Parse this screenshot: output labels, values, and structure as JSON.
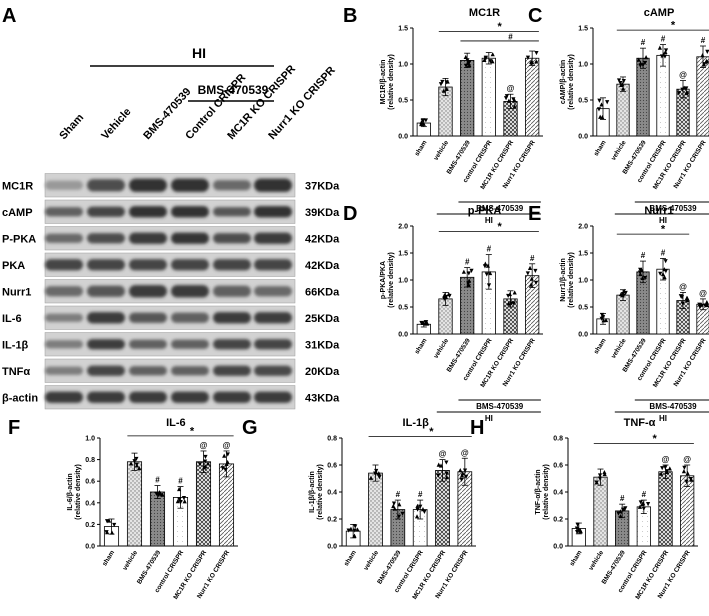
{
  "panel_a": {
    "letter": "A",
    "hi_label": "HI",
    "bms_label": "BMS-470539",
    "lanes": [
      "Sham",
      "Vehicle",
      "BMS-470539",
      "Control CRISPR",
      "MC1R KO CRISPR",
      "Nurr1 KO CRISPR"
    ],
    "bands": [
      {
        "name": "MC1R",
        "kda": "37KDa",
        "intensity": [
          0.3,
          0.7,
          0.85,
          0.85,
          0.55,
          0.85
        ],
        "thickness": [
          0.45,
          0.6,
          0.65,
          0.65,
          0.5,
          0.65
        ]
      },
      {
        "name": "cAMP",
        "kda": "39KDa",
        "intensity": [
          0.6,
          0.75,
          0.85,
          0.85,
          0.65,
          0.85
        ],
        "thickness": [
          0.45,
          0.5,
          0.55,
          0.55,
          0.45,
          0.55
        ]
      },
      {
        "name": "P-PKA",
        "kda": "42KDa",
        "intensity": [
          0.55,
          0.7,
          0.8,
          0.82,
          0.7,
          0.8
        ],
        "thickness": [
          0.45,
          0.5,
          0.55,
          0.55,
          0.5,
          0.55
        ]
      },
      {
        "name": "PKA",
        "kda": "42KDa",
        "intensity": [
          0.75,
          0.75,
          0.75,
          0.75,
          0.75,
          0.75
        ],
        "thickness": [
          0.55,
          0.55,
          0.55,
          0.55,
          0.55,
          0.55
        ]
      },
      {
        "name": "Nurr1",
        "kda": "66KDa",
        "intensity": [
          0.55,
          0.65,
          0.8,
          0.8,
          0.6,
          0.55
        ],
        "thickness": [
          0.5,
          0.55,
          0.6,
          0.6,
          0.55,
          0.5
        ]
      },
      {
        "name": "IL-6",
        "kda": "25KDa",
        "intensity": [
          0.45,
          0.8,
          0.65,
          0.6,
          0.8,
          0.78
        ],
        "thickness": [
          0.4,
          0.55,
          0.5,
          0.5,
          0.55,
          0.55
        ]
      },
      {
        "name": "IL-1β",
        "kda": "31KDa",
        "intensity": [
          0.45,
          0.78,
          0.6,
          0.6,
          0.75,
          0.75
        ],
        "thickness": [
          0.4,
          0.5,
          0.45,
          0.45,
          0.5,
          0.5
        ]
      },
      {
        "name": "TNFα",
        "kda": "20KDa",
        "intensity": [
          0.45,
          0.75,
          0.6,
          0.6,
          0.75,
          0.72
        ],
        "thickness": [
          0.4,
          0.5,
          0.45,
          0.45,
          0.5,
          0.5
        ]
      },
      {
        "name": "β-actin",
        "kda": "43KDa",
        "intensity": [
          0.8,
          0.8,
          0.8,
          0.8,
          0.8,
          0.8
        ],
        "thickness": [
          0.55,
          0.55,
          0.55,
          0.55,
          0.55,
          0.55
        ]
      }
    ]
  },
  "colors": {
    "sham": "#ffffff",
    "vehicle": "#bdbdbd",
    "bms": "#7a7a7a",
    "control": "#f7f7f7",
    "mc1r_ko": "#9a9a9a",
    "nurr1_ko": "#d6d6d6"
  },
  "chart_data": [
    {
      "panel": "B",
      "type": "bar",
      "title": "MC1R",
      "ylabel": "MC1R/β-actin\n(relative density)",
      "ylim": [
        0,
        1.5
      ],
      "yticks": [
        "0.0",
        "0.5",
        "1.0",
        "1.5"
      ],
      "categories": [
        "sham",
        "vehicle",
        "BMS-470539",
        "control CRISPR",
        "MC1R KO CRISPR",
        "Nurr1 KO CRISPR"
      ],
      "values": [
        0.18,
        0.68,
        1.05,
        1.08,
        0.48,
        1.08
      ],
      "errors": [
        0.05,
        0.12,
        0.1,
        0.08,
        0.1,
        0.1
      ],
      "marks": [
        "",
        "",
        "",
        "",
        "@",
        ""
      ],
      "bms_label": "BMS-470539",
      "hi_label": "HI",
      "sig": [
        {
          "text": "*",
          "from": 1,
          "to": 5,
          "level": 1.45
        },
        {
          "text": "#",
          "from": 2,
          "to": 5,
          "level": 1.32
        }
      ]
    },
    {
      "panel": "C",
      "type": "bar",
      "title": "cAMP",
      "ylabel": "cAMP/β-actin\n(relative density)",
      "ylim": [
        0,
        1.5
      ],
      "yticks": [
        "0.0",
        "0.5",
        "1.0",
        "1.5"
      ],
      "categories": [
        "sham",
        "vehicle",
        "BMS-470539",
        "control CRISPR",
        "MC1R KO CRISPR",
        "Nurr1 KO CRISPR"
      ],
      "values": [
        0.38,
        0.72,
        1.08,
        1.12,
        0.65,
        1.1
      ],
      "errors": [
        0.15,
        0.1,
        0.14,
        0.15,
        0.12,
        0.15
      ],
      "marks": [
        "",
        "",
        "#",
        "#",
        "@",
        "#"
      ],
      "bms_label": "BMS-470539",
      "hi_label": "HI",
      "sig": [
        {
          "text": "*",
          "from": 1,
          "to": 5,
          "level": 1.47
        }
      ]
    },
    {
      "panel": "D",
      "type": "bar",
      "title": "p-PKA",
      "ylabel": "p-PKA/PKA\n(relative density)",
      "ylim": [
        0,
        2.0
      ],
      "yticks": [
        "0.0",
        "0.5",
        "1.0",
        "1.5",
        "2.0"
      ],
      "categories": [
        "sham",
        "vehicle",
        "BMS-470539",
        "control CRISPR",
        "MC1R KO CRISPR",
        "Nurr1 KO CRISPR"
      ],
      "values": [
        0.18,
        0.65,
        1.05,
        1.15,
        0.65,
        1.08
      ],
      "errors": [
        0.05,
        0.12,
        0.18,
        0.32,
        0.15,
        0.22
      ],
      "marks": [
        "",
        "",
        "#",
        "#",
        "",
        "#"
      ],
      "bms_label": "BMS-470539",
      "hi_label": "HI",
      "sig": [
        {
          "text": "*",
          "from": 1,
          "to": 5,
          "level": 1.9
        }
      ]
    },
    {
      "panel": "E",
      "type": "bar",
      "title": "Nurr1",
      "ylabel": "Nurr1/β-actin\n(relative density)",
      "ylim": [
        0,
        2.0
      ],
      "yticks": [
        "0.0",
        "0.5",
        "1.0",
        "1.5",
        "2.0"
      ],
      "categories": [
        "sham",
        "vehicle",
        "BMS-470539",
        "control CRISPR",
        "MC1R KO CRISPR",
        "Nurr1 KO CRISPR"
      ],
      "values": [
        0.28,
        0.72,
        1.15,
        1.2,
        0.62,
        0.55
      ],
      "errors": [
        0.1,
        0.1,
        0.2,
        0.2,
        0.15,
        0.1
      ],
      "marks": [
        "",
        "",
        "#",
        "#",
        "@",
        "@"
      ],
      "bms_label": "BMS-470539",
      "hi_label": "HI",
      "sig": [
        {
          "text": "*",
          "from": 1,
          "to": 4,
          "level": 1.85
        }
      ]
    },
    {
      "panel": "F",
      "type": "bar",
      "title": "IL-6",
      "ylabel": "IL-6/β-actin\n(relative density)",
      "ylim": [
        0,
        1.0
      ],
      "yticks": [
        "0.0",
        "0.2",
        "0.4",
        "0.6",
        "0.8",
        "1.0"
      ],
      "categories": [
        "sham",
        "vehicle",
        "BMS-470539",
        "control CRISPR",
        "MC1R KO CRISPR",
        "Nurr1 KO CRISPR"
      ],
      "values": [
        0.18,
        0.78,
        0.5,
        0.45,
        0.78,
        0.76
      ],
      "errors": [
        0.07,
        0.08,
        0.06,
        0.1,
        0.1,
        0.12
      ],
      "marks": [
        "",
        "",
        "#",
        "#",
        "@",
        "@"
      ],
      "bms_label": "BMS-470539",
      "hi_label": "HI",
      "sig": [
        {
          "text": "*",
          "from": 1,
          "to": 5,
          "level": 1.02
        }
      ]
    },
    {
      "panel": "G",
      "type": "bar",
      "title": "IL-1β",
      "ylabel": "IL-1β/β-actin\n(relative density)",
      "ylim": [
        0,
        0.8
      ],
      "yticks": [
        "0.0",
        "0.2",
        "0.4",
        "0.6",
        "0.8"
      ],
      "categories": [
        "sham",
        "vehicle",
        "BMS-470539",
        "control CRISPR",
        "MC1R KO CRISPR",
        "Nurr1 KO CRISPR"
      ],
      "values": [
        0.11,
        0.54,
        0.27,
        0.27,
        0.56,
        0.55
      ],
      "errors": [
        0.05,
        0.06,
        0.07,
        0.07,
        0.08,
        0.1
      ],
      "marks": [
        "",
        "",
        "#",
        "#",
        "@",
        "@"
      ],
      "bms_label": "BMS-470539",
      "hi_label": "HI",
      "sig": [
        {
          "text": "*",
          "from": 1,
          "to": 5,
          "level": 0.81
        }
      ]
    },
    {
      "panel": "H",
      "type": "bar",
      "title": "TNF-α",
      "ylabel": "TNF-α/β-actin\n(relative density)",
      "ylim": [
        0,
        0.8
      ],
      "yticks": [
        "0.0",
        "0.2",
        "0.4",
        "0.6",
        "0.8"
      ],
      "categories": [
        "sham",
        "vehicle",
        "BMS-470539",
        "control CRISPR",
        "MC1R KO CRISPR",
        "Nurr1 KO CRISPR"
      ],
      "values": [
        0.13,
        0.51,
        0.26,
        0.29,
        0.55,
        0.52
      ],
      "errors": [
        0.04,
        0.06,
        0.05,
        0.05,
        0.05,
        0.08
      ],
      "marks": [
        "",
        "",
        "#",
        "#",
        "@",
        "@"
      ],
      "bms_label": "BMS-470539",
      "hi_label": "HI",
      "sig": [
        {
          "text": "*",
          "from": 1,
          "to": 5,
          "level": 0.76
        }
      ]
    }
  ]
}
